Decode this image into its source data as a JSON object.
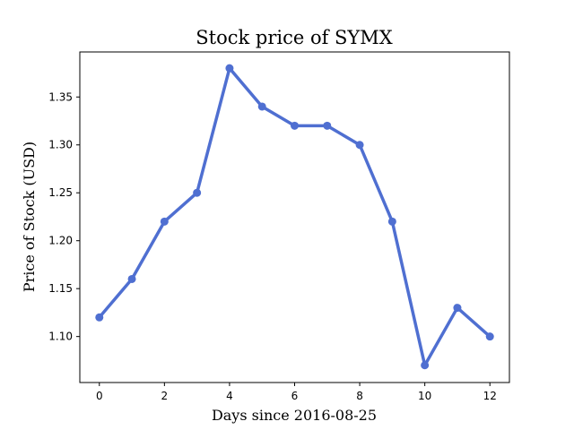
{
  "chart_data": {
    "type": "line",
    "title": "Stock price of SYMX",
    "xlabel": "Days since 2016-08-25",
    "ylabel": "Price of Stock (USD)",
    "x": [
      0,
      1,
      2,
      3,
      4,
      5,
      6,
      7,
      8,
      9,
      10,
      11,
      12
    ],
    "series": [
      {
        "values": [
          1.12,
          1.16,
          1.22,
          1.25,
          1.38,
          1.34,
          1.32,
          1.32,
          1.3,
          1.22,
          1.07,
          1.13,
          1.1
        ]
      }
    ],
    "xlim": [
      -0.6,
      12.6
    ],
    "ylim": [
      1.052,
      1.397
    ],
    "xticks": [
      0,
      2,
      4,
      6,
      8,
      10,
      12
    ],
    "xtick_labels": [
      "0",
      "2",
      "4",
      "6",
      "8",
      "10",
      "12"
    ],
    "yticks": [
      1.1,
      1.15,
      1.2,
      1.25,
      1.3,
      1.35
    ],
    "ytick_labels": [
      "1.10",
      "1.15",
      "1.20",
      "1.25",
      "1.30",
      "1.35"
    ],
    "grid": false,
    "line_color": "#4f6fd1"
  }
}
